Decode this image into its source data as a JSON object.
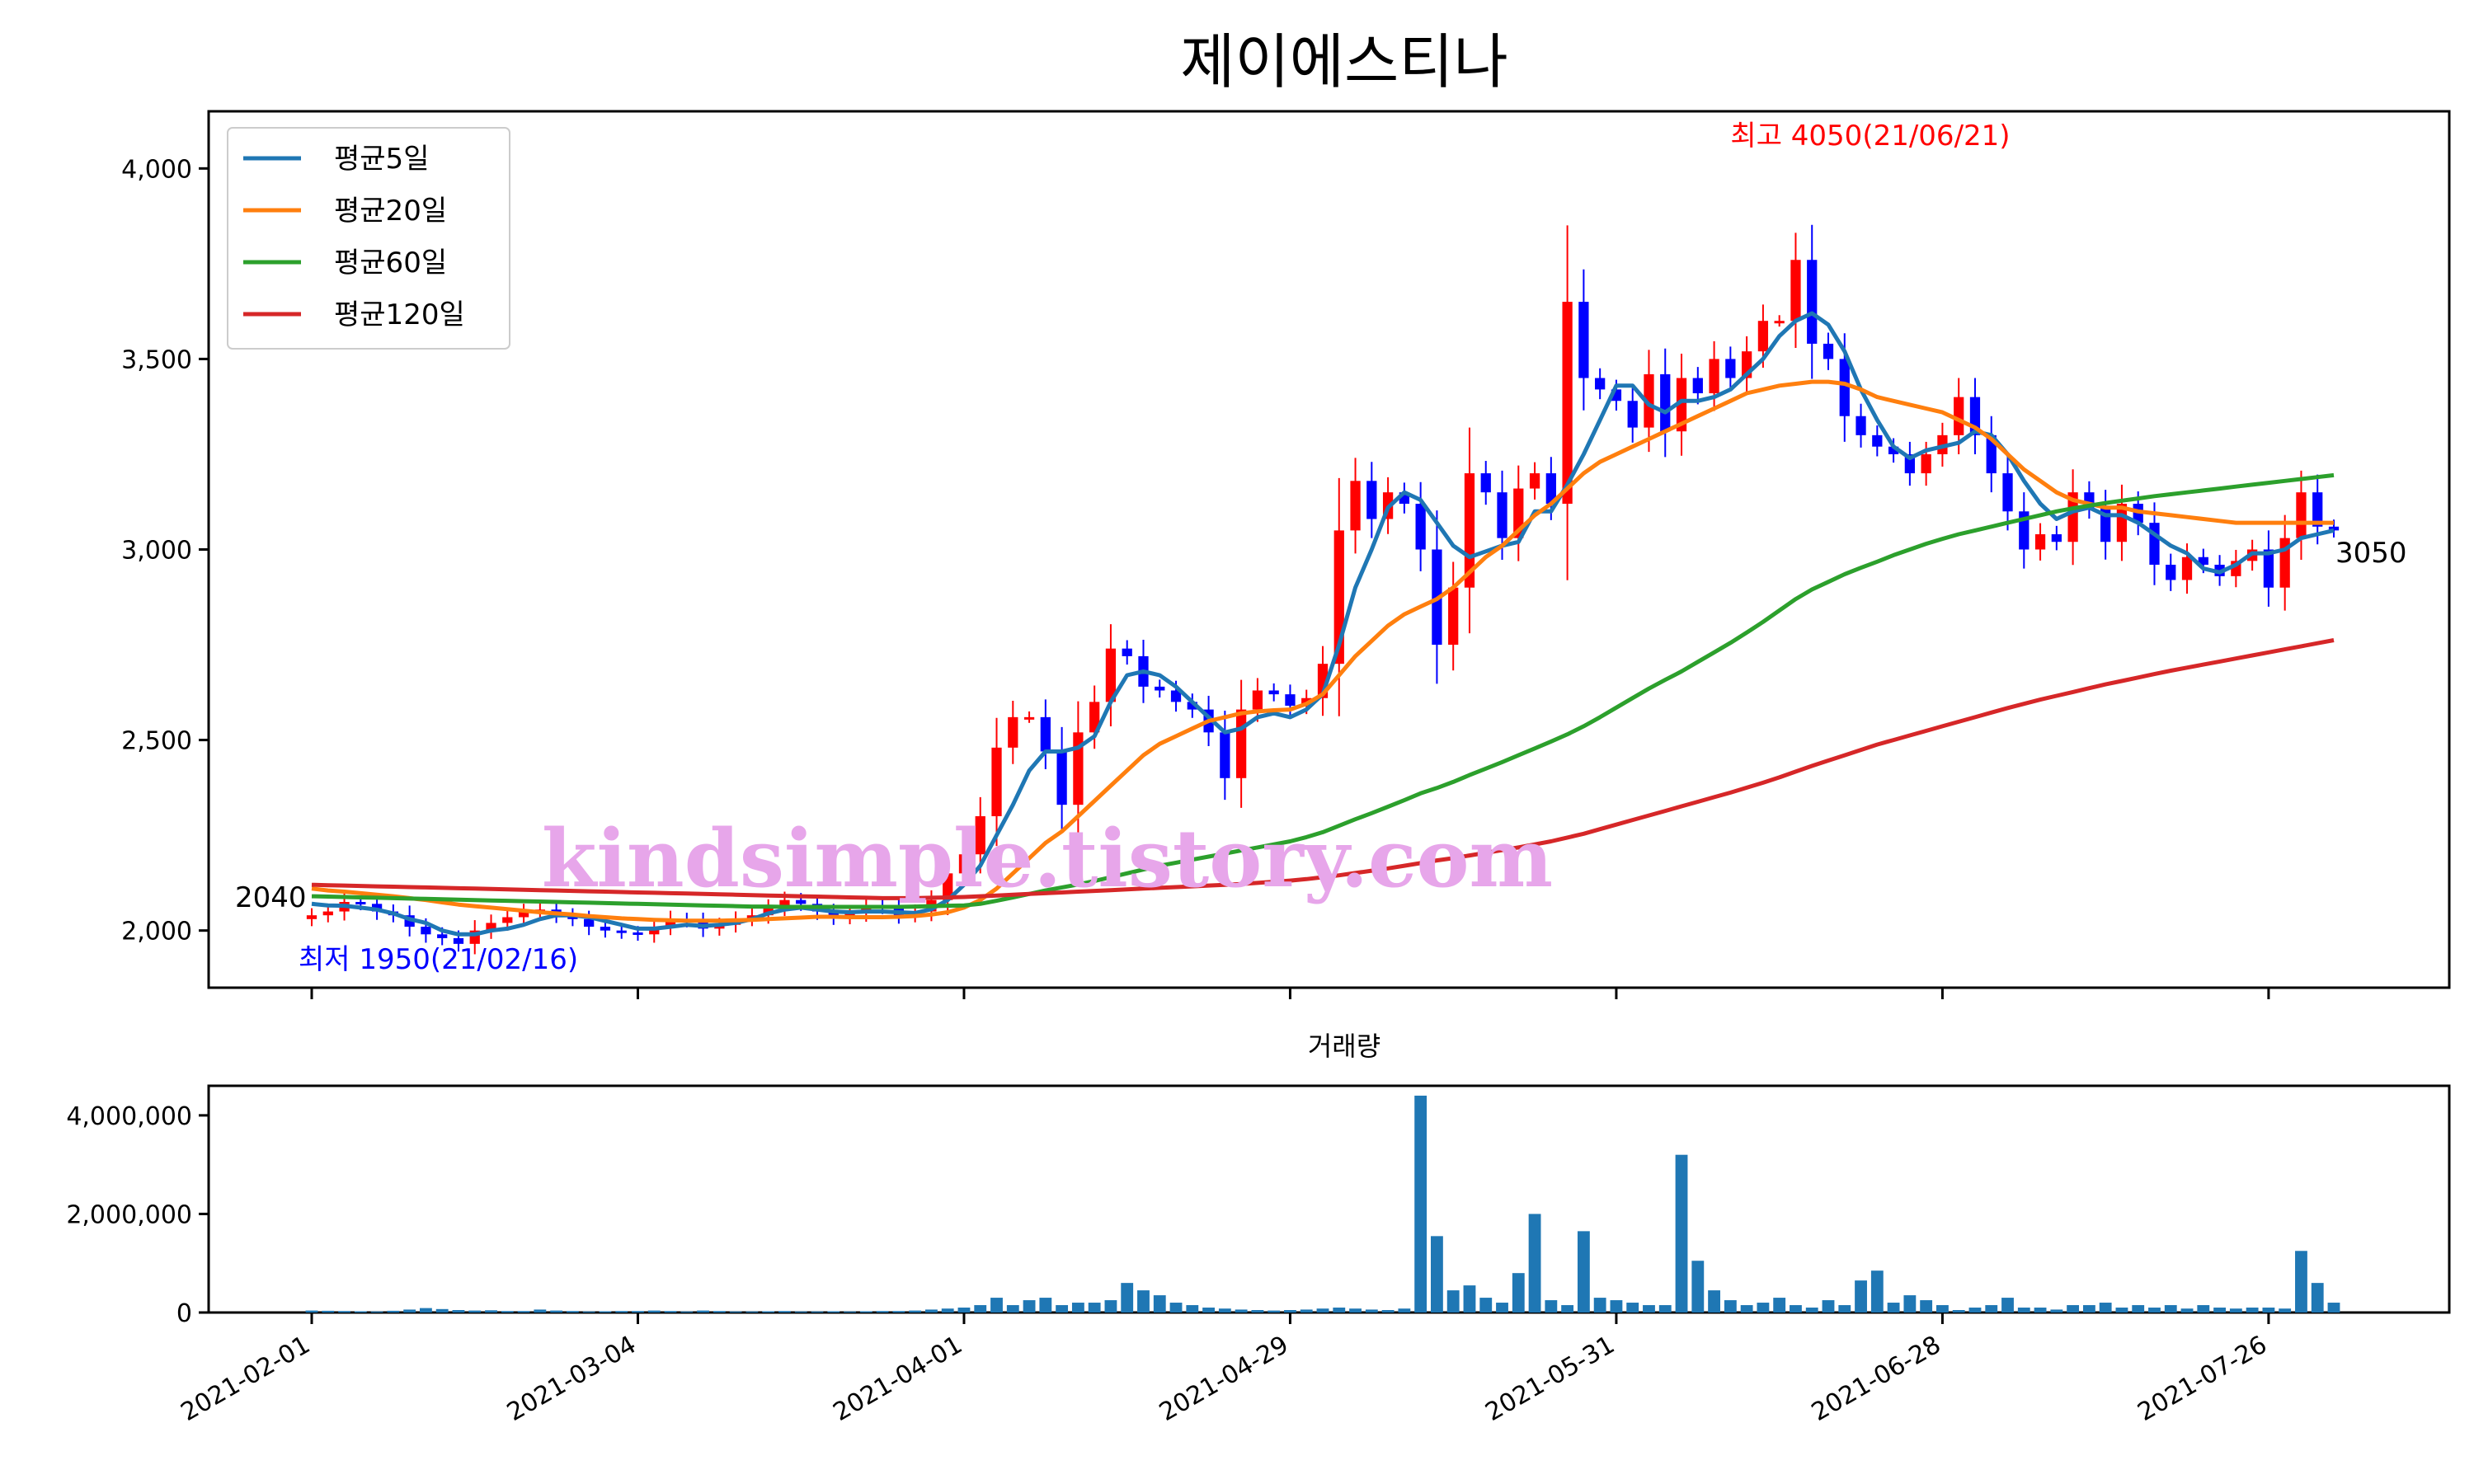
{
  "chart_data": [
    {
      "type": "candlestick",
      "title": "제이에스티나",
      "ylim": [
        1850,
        4150
      ],
      "y_ticks": [
        2000,
        2500,
        3000,
        3500,
        4000
      ],
      "y_tick_labels": [
        "2,000",
        "2,500",
        "3,000",
        "3,500",
        "4,000"
      ],
      "x_ticks": [
        "2021-02-01",
        "2021-03-04",
        "2021-04-01",
        "2021-04-29",
        "2021-05-31",
        "2021-06-28",
        "2021-07-26"
      ],
      "legend_position": "upper-left",
      "legend": [
        {
          "name": "평균5일",
          "color": "#1f77b4"
        },
        {
          "name": "평균20일",
          "color": "#ff7f0e"
        },
        {
          "name": "평균60일",
          "color": "#2ca02c"
        },
        {
          "name": "평균120일",
          "color": "#d62728"
        }
      ],
      "up_color": "#ff0000",
      "down_color": "#0000ff",
      "annotations": {
        "max": "최고 4050(21/06/21)",
        "min": "최저 1950(21/02/16)",
        "first_close": "2040",
        "last_close": "3050"
      },
      "watermark": "kindsimple.tistory.com",
      "dates": [
        "2021-02-01",
        "2021-02-02",
        "2021-02-03",
        "2021-02-04",
        "2021-02-05",
        "2021-02-08",
        "2021-02-09",
        "2021-02-10",
        "2021-02-15",
        "2021-02-16",
        "2021-02-17",
        "2021-02-18",
        "2021-02-19",
        "2021-02-22",
        "2021-02-23",
        "2021-02-24",
        "2021-02-25",
        "2021-02-26",
        "2021-03-02",
        "2021-03-03",
        "2021-03-04",
        "2021-03-05",
        "2021-03-08",
        "2021-03-09",
        "2021-03-10",
        "2021-03-11",
        "2021-03-12",
        "2021-03-15",
        "2021-03-16",
        "2021-03-17",
        "2021-03-18",
        "2021-03-19",
        "2021-03-22",
        "2021-03-23",
        "2021-03-24",
        "2021-03-25",
        "2021-03-26",
        "2021-03-29",
        "2021-03-30",
        "2021-03-31",
        "2021-04-01",
        "2021-04-02",
        "2021-04-05",
        "2021-04-06",
        "2021-04-07",
        "2021-04-08",
        "2021-04-09",
        "2021-04-12",
        "2021-04-13",
        "2021-04-14",
        "2021-04-15",
        "2021-04-16",
        "2021-04-19",
        "2021-04-20",
        "2021-04-21",
        "2021-04-22",
        "2021-04-23",
        "2021-04-26",
        "2021-04-27",
        "2021-04-28",
        "2021-04-29",
        "2021-04-30",
        "2021-05-03",
        "2021-05-04",
        "2021-05-06",
        "2021-05-07",
        "2021-05-10",
        "2021-05-11",
        "2021-05-12",
        "2021-05-13",
        "2021-05-14",
        "2021-05-17",
        "2021-05-18",
        "2021-05-20",
        "2021-05-21",
        "2021-05-24",
        "2021-05-25",
        "2021-05-26",
        "2021-05-27",
        "2021-05-28",
        "2021-05-31",
        "2021-06-01",
        "2021-06-02",
        "2021-06-03",
        "2021-06-04",
        "2021-06-07",
        "2021-06-08",
        "2021-06-09",
        "2021-06-10",
        "2021-06-11",
        "2021-06-14",
        "2021-06-15",
        "2021-06-16",
        "2021-06-17",
        "2021-06-18",
        "2021-06-21",
        "2021-06-22",
        "2021-06-23",
        "2021-06-24",
        "2021-06-25",
        "2021-06-28",
        "2021-06-29",
        "2021-06-30",
        "2021-07-01",
        "2021-07-02",
        "2021-07-05",
        "2021-07-06",
        "2021-07-07",
        "2021-07-08",
        "2021-07-09",
        "2021-07-12",
        "2021-07-13",
        "2021-07-14",
        "2021-07-15",
        "2021-07-16",
        "2021-07-19",
        "2021-07-20",
        "2021-07-21",
        "2021-07-22",
        "2021-07-23",
        "2021-07-26",
        "2021-07-27",
        "2021-07-28",
        "2021-07-29",
        "2021-07-30"
      ],
      "close": [
        2040,
        2050,
        2075,
        2070,
        2050,
        2040,
        2010,
        1990,
        1980,
        1965,
        2000,
        2020,
        2035,
        2050,
        2055,
        2040,
        2030,
        2010,
        2000,
        1995,
        1990,
        2010,
        2030,
        2025,
        2005,
        2015,
        2030,
        2040,
        2060,
        2080,
        2070,
        2050,
        2035,
        2045,
        2065,
        2060,
        2040,
        2050,
        2080,
        2150,
        2200,
        2300,
        2480,
        2560,
        2560,
        2470,
        2330,
        2520,
        2600,
        2740,
        2720,
        2640,
        2630,
        2600,
        2580,
        2520,
        2400,
        2580,
        2630,
        2620,
        2590,
        2610,
        2700,
        3050,
        3180,
        3080,
        3150,
        3120,
        3000,
        2750,
        2900,
        3200,
        3150,
        3030,
        3160,
        3200,
        3120,
        3650,
        3450,
        3420,
        3390,
        3320,
        3460,
        3310,
        3450,
        3410,
        3500,
        3450,
        3520,
        3600,
        3600,
        3760,
        3540,
        3500,
        3350,
        3300,
        3270,
        3250,
        3200,
        3250,
        3300,
        3400,
        3300,
        3200,
        3100,
        3000,
        3040,
        3020,
        3150,
        3110,
        3020,
        3120,
        3070,
        2960,
        2920,
        2980,
        2960,
        2930,
        2970,
        3000,
        2900,
        3030,
        3150,
        3060,
        3050
      ],
      "ma5": [
        2070,
        2066,
        2065,
        2060,
        2055,
        2045,
        2030,
        2020,
        2000,
        1990,
        1990,
        2000,
        2005,
        2015,
        2030,
        2040,
        2040,
        2035,
        2025,
        2015,
        2005,
        2005,
        2010,
        2015,
        2012,
        2015,
        2020,
        2030,
        2045,
        2055,
        2060,
        2055,
        2050,
        2048,
        2050,
        2050,
        2048,
        2046,
        2056,
        2080,
        2120,
        2170,
        2250,
        2330,
        2420,
        2470,
        2470,
        2480,
        2510,
        2600,
        2670,
        2680,
        2670,
        2640,
        2600,
        2560,
        2520,
        2530,
        2560,
        2570,
        2560,
        2580,
        2620,
        2750,
        2900,
        3000,
        3110,
        3150,
        3130,
        3070,
        3010,
        2980,
        2995,
        3010,
        3020,
        3100,
        3100,
        3170,
        3250,
        3340,
        3430,
        3430,
        3380,
        3360,
        3390,
        3390,
        3400,
        3420,
        3460,
        3500,
        3560,
        3600,
        3620,
        3590,
        3520,
        3420,
        3340,
        3270,
        3240,
        3260,
        3270,
        3280,
        3310,
        3300,
        3250,
        3180,
        3120,
        3080,
        3100,
        3110,
        3090,
        3090,
        3070,
        3040,
        3010,
        2990,
        2950,
        2940,
        2960,
        2990,
        2990,
        3000,
        3030,
        3040,
        3050
      ],
      "ma20": [
        2110,
        2105,
        2102,
        2098,
        2094,
        2090,
        2085,
        2080,
        2074,
        2068,
        2064,
        2060,
        2056,
        2052,
        2048,
        2045,
        2042,
        2038,
        2035,
        2032,
        2030,
        2028,
        2027,
        2026,
        2026,
        2026,
        2027,
        2028,
        2030,
        2032,
        2034,
        2036,
        2036,
        2035,
        2035,
        2035,
        2036,
        2038,
        2042,
        2048,
        2060,
        2080,
        2110,
        2150,
        2190,
        2230,
        2260,
        2300,
        2340,
        2380,
        2420,
        2460,
        2490,
        2510,
        2530,
        2550,
        2560,
        2570,
        2575,
        2578,
        2580,
        2595,
        2620,
        2670,
        2720,
        2760,
        2800,
        2830,
        2850,
        2870,
        2900,
        2940,
        2980,
        3010,
        3050,
        3090,
        3120,
        3160,
        3200,
        3230,
        3250,
        3270,
        3290,
        3310,
        3330,
        3350,
        3370,
        3390,
        3410,
        3420,
        3430,
        3435,
        3440,
        3440,
        3435,
        3420,
        3400,
        3390,
        3380,
        3370,
        3360,
        3340,
        3320,
        3290,
        3250,
        3210,
        3180,
        3150,
        3130,
        3120,
        3110,
        3110,
        3100,
        3095,
        3090,
        3085,
        3080,
        3075,
        3070,
        3070,
        3070,
        3070,
        3070,
        3070,
        3070
      ],
      "ma60": [
        2090,
        2089,
        2088,
        2087,
        2086,
        2085,
        2084,
        2083,
        2082,
        2081,
        2080,
        2079,
        2078,
        2077,
        2076,
        2075,
        2074,
        2073,
        2072,
        2071,
        2070,
        2069,
        2068,
        2067,
        2066,
        2065,
        2064,
        2063,
        2063,
        2062,
        2062,
        2062,
        2062,
        2062,
        2062,
        2062,
        2062,
        2063,
        2064,
        2065,
        2066,
        2070,
        2078,
        2087,
        2096,
        2105,
        2113,
        2121,
        2130,
        2140,
        2150,
        2160,
        2170,
        2178,
        2186,
        2194,
        2202,
        2210,
        2218,
        2226,
        2234,
        2245,
        2258,
        2275,
        2292,
        2308,
        2325,
        2342,
        2360,
        2374,
        2390,
        2408,
        2425,
        2442,
        2460,
        2478,
        2496,
        2515,
        2536,
        2560,
        2585,
        2610,
        2635,
        2658,
        2680,
        2705,
        2730,
        2755,
        2782,
        2810,
        2840,
        2870,
        2895,
        2915,
        2935,
        2952,
        2968,
        2985,
        3000,
        3015,
        3028,
        3040,
        3050,
        3060,
        3070,
        3080,
        3090,
        3100,
        3108,
        3115,
        3122,
        3128,
        3134,
        3140,
        3145,
        3150,
        3155,
        3160,
        3165,
        3170,
        3175,
        3180,
        3185,
        3190,
        3195
      ],
      "ma120": [
        2120,
        2119,
        2118,
        2117,
        2116,
        2115,
        2114,
        2113,
        2112,
        2111,
        2110,
        2109,
        2108,
        2107,
        2106,
        2105,
        2104,
        2103,
        2102,
        2101,
        2100,
        2099,
        2098,
        2097,
        2096,
        2095,
        2094,
        2093,
        2092,
        2091,
        2090,
        2089,
        2088,
        2087,
        2086,
        2085,
        2085,
        2085,
        2086,
        2087,
        2088,
        2090,
        2092,
        2094,
        2096,
        2098,
        2100,
        2102,
        2104,
        2106,
        2108,
        2110,
        2112,
        2114,
        2116,
        2118,
        2120,
        2122,
        2125,
        2128,
        2131,
        2135,
        2140,
        2145,
        2151,
        2157,
        2163,
        2170,
        2177,
        2184,
        2190,
        2197,
        2204,
        2211,
        2218,
        2226,
        2234,
        2244,
        2254,
        2266,
        2278,
        2290,
        2302,
        2314,
        2326,
        2338,
        2350,
        2362,
        2375,
        2388,
        2402,
        2417,
        2432,
        2446,
        2460,
        2474,
        2488,
        2500,
        2512,
        2524,
        2536,
        2548,
        2560,
        2572,
        2584,
        2595,
        2606,
        2616,
        2626,
        2636,
        2646,
        2655,
        2664,
        2673,
        2682,
        2690,
        2698,
        2706,
        2714,
        2722,
        2730,
        2738,
        2746,
        2754,
        2762
      ],
      "volume": [
        40000,
        35000,
        30000,
        25000,
        20000,
        35000,
        60000,
        90000,
        70000,
        50000,
        40000,
        45000,
        30000,
        30000,
        60000,
        40000,
        30000,
        20000,
        25000,
        30000,
        30000,
        40000,
        30000,
        20000,
        40000,
        30000,
        20000,
        20000,
        25000,
        30000,
        20000,
        20000,
        25000,
        20000,
        25000,
        30000,
        30000,
        40000,
        60000,
        80000,
        100000,
        150000,
        300000,
        150000,
        250000,
        300000,
        150000,
        200000,
        200000,
        250000,
        600000,
        450000,
        350000,
        200000,
        150000,
        100000,
        80000,
        60000,
        50000,
        40000,
        50000,
        60000,
        80000,
        100000,
        80000,
        60000,
        50000,
        80000,
        4400000,
        1550000,
        450000,
        550000,
        300000,
        200000,
        800000,
        2000000,
        250000,
        150000,
        1650000,
        300000,
        250000,
        200000,
        150000,
        150000,
        3200000,
        1050000,
        450000,
        250000,
        150000,
        200000,
        300000,
        150000,
        100000,
        250000,
        150000,
        650000,
        850000,
        200000,
        350000,
        250000,
        150000,
        50000,
        100000,
        150000,
        300000,
        100000,
        100000,
        60000,
        150000,
        150000,
        200000,
        100000,
        150000,
        100000,
        150000,
        80000,
        150000,
        100000,
        80000,
        100000,
        100000,
        80000,
        1250000,
        600000,
        200000
      ],
      "volume_title": "거래량",
      "volume_ylim": [
        0,
        4600000
      ],
      "volume_ticks": [
        0,
        2000000,
        4000000
      ],
      "volume_tick_labels": [
        "0",
        "2,000,000",
        "4,000,000"
      ]
    }
  ]
}
